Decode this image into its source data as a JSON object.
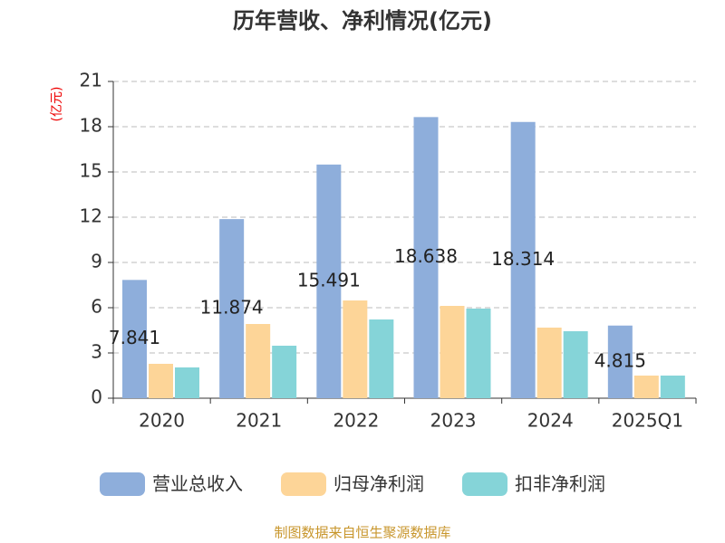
{
  "chart_data": {
    "type": "bar",
    "title": "历年营收、净利情况(亿元)",
    "y_label": "(亿元)",
    "categories": [
      "2020",
      "2021",
      "2022",
      "2023",
      "2024",
      "2025Q1"
    ],
    "series": [
      {
        "name": "营业总收入",
        "color": "#8eaedb",
        "values": [
          7.841,
          11.874,
          15.491,
          18.638,
          18.314,
          4.815
        ],
        "show_labels": true
      },
      {
        "name": "归母净利润",
        "color": "#fdd598",
        "values": [
          2.28,
          4.92,
          6.48,
          6.12,
          4.68,
          1.5
        ]
      },
      {
        "name": "扣非净利润",
        "color": "#85d4d8",
        "values": [
          2.04,
          3.48,
          5.22,
          5.94,
          4.44,
          1.5
        ]
      }
    ],
    "ylim": [
      0,
      21
    ],
    "yticks": [
      0,
      3,
      6,
      9,
      12,
      15,
      18,
      21
    ],
    "grid": true,
    "source": "制图数据来自恒生聚源数据库"
  }
}
